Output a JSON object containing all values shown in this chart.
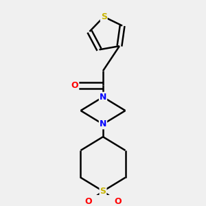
{
  "background_color": "#f0f0f0",
  "atom_colors": {
    "S": "#c8b400",
    "N": "#0000ff",
    "O": "#ff0000",
    "C": "#000000"
  },
  "bond_color": "#000000",
  "bond_width": 1.8,
  "figsize": [
    3.0,
    3.0
  ],
  "dpi": 100
}
